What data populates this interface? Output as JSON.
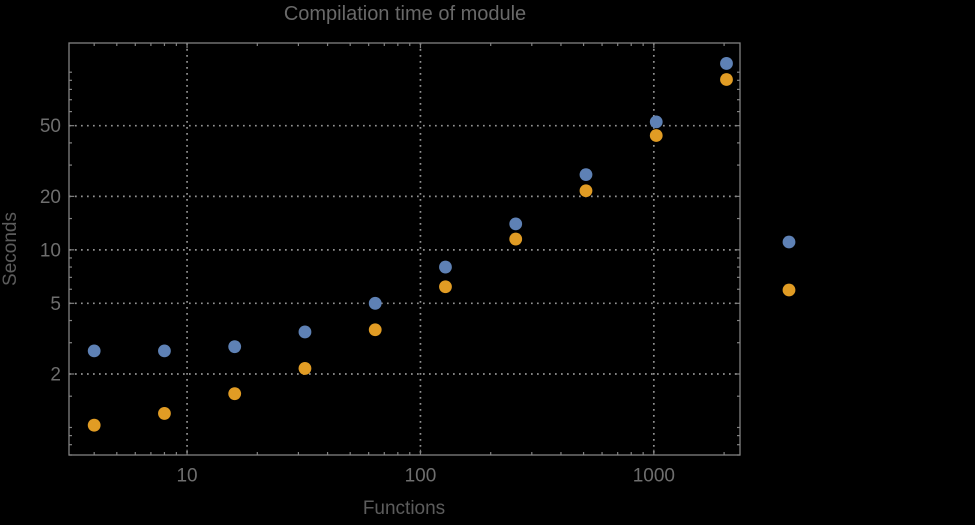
{
  "chart_data": {
    "type": "scatter",
    "title": "Compilation time of module",
    "xlabel": "Functions",
    "ylabel": "Seconds",
    "x_scale": "log",
    "y_scale": "log",
    "xlim": [
      3.12,
      2340
    ],
    "ylim": [
      0.7,
      146
    ],
    "grid": "dotted",
    "grid_color": "#919191",
    "background": "#000000",
    "x_ticks": [
      {
        "value": 10,
        "label": "10"
      },
      {
        "value": 100,
        "label": "100"
      },
      {
        "value": 1000,
        "label": "1000"
      }
    ],
    "y_ticks": [
      {
        "value": 2,
        "label": "2"
      },
      {
        "value": 5,
        "label": "5"
      },
      {
        "value": 10,
        "label": "10"
      },
      {
        "value": 20,
        "label": "20"
      },
      {
        "value": 50,
        "label": "50"
      }
    ],
    "x": [
      4,
      8,
      16,
      32,
      64,
      128,
      256,
      512,
      1024,
      2048
    ],
    "series": [
      {
        "label": "",
        "color": "#5e81b5",
        "values": [
          2.7,
          2.7,
          2.85,
          3.45,
          5.0,
          8.0,
          14.0,
          26.5,
          52.5,
          112
        ]
      },
      {
        "label": "",
        "color": "#e19c24",
        "values": [
          1.03,
          1.2,
          1.55,
          2.15,
          3.55,
          6.2,
          11.5,
          21.5,
          44,
          91
        ]
      }
    ],
    "legend": {
      "position": "right-outside",
      "labels_visible": false
    }
  }
}
